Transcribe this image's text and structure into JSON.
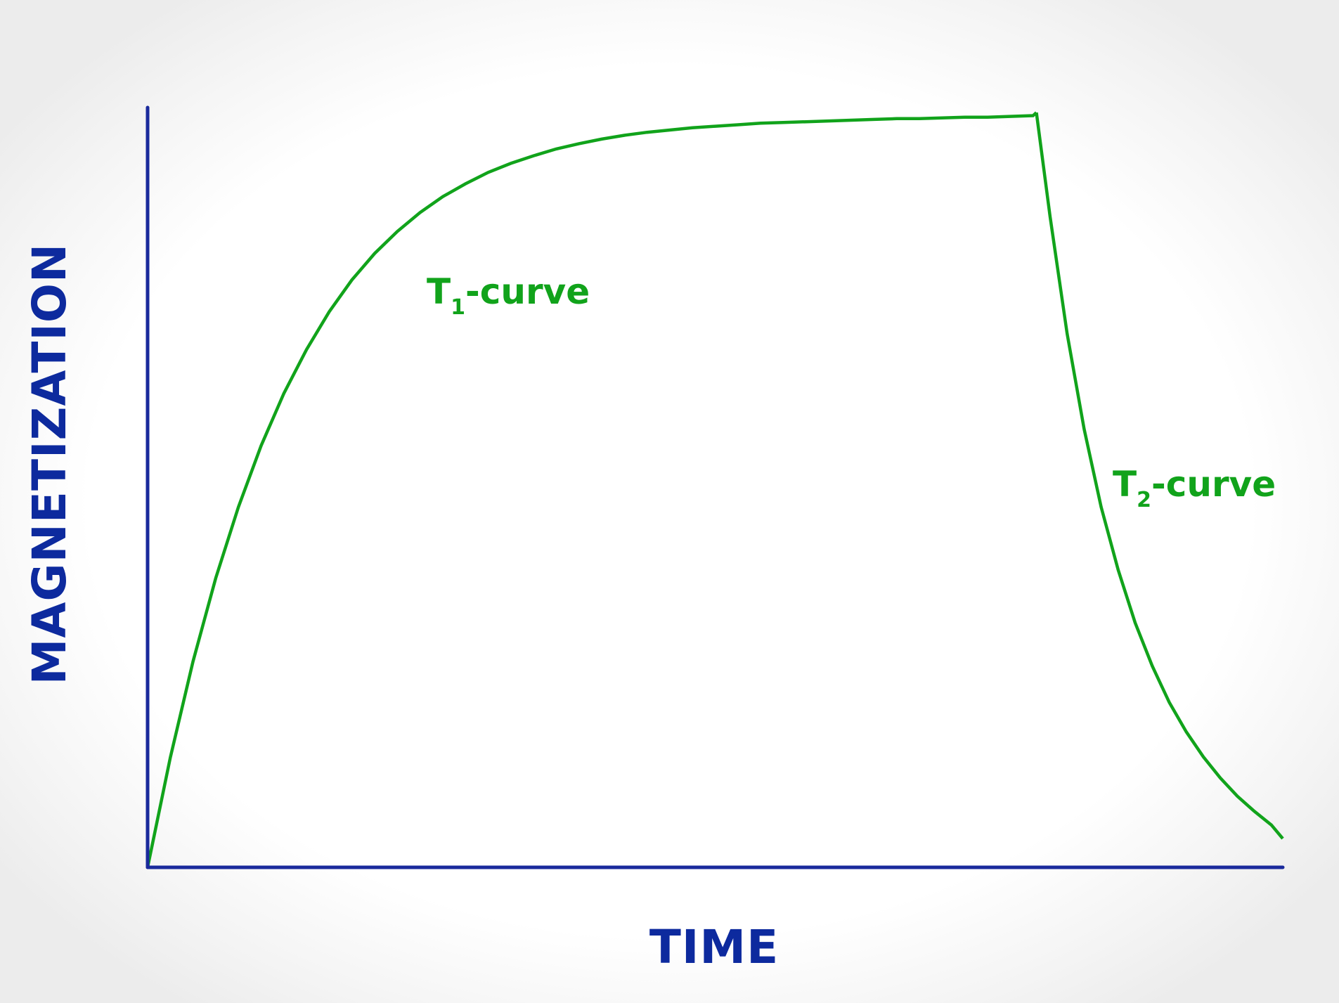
{
  "chart_data": {
    "type": "line",
    "title": "",
    "xlabel": "TIME",
    "ylabel": "MAGNETIZATION",
    "xlim": [
      0,
      100
    ],
    "ylim": [
      0,
      100
    ],
    "grid": false,
    "legend": "none",
    "colors": {
      "axis": "#1a2a9c",
      "axis_text": "#0d2a9e",
      "curve": "#11a31b"
    },
    "series": [
      {
        "x": [
          0,
          2,
          4,
          6,
          8,
          10,
          12,
          14,
          16,
          18,
          20,
          22,
          24,
          26,
          28,
          30,
          32,
          34,
          36,
          38,
          40,
          42,
          44,
          46,
          48,
          50,
          52,
          54,
          56,
          58,
          60,
          62,
          64,
          66,
          68,
          70,
          72,
          74,
          76,
          78,
          78.3
        ],
        "y": [
          0,
          14.5,
          27.2,
          38.2,
          47.6,
          55.7,
          62.6,
          68.4,
          73.4,
          77.6,
          81.1,
          84.0,
          86.5,
          88.6,
          90.3,
          91.8,
          93.0,
          94.0,
          94.9,
          95.6,
          96.2,
          96.7,
          97.1,
          97.4,
          97.7,
          97.9,
          98.1,
          98.3,
          98.4,
          98.5,
          98.6,
          98.7,
          98.8,
          98.9,
          98.9,
          99.0,
          99.1,
          99.1,
          99.2,
          99.3,
          99.7
        ]
      },
      {
        "x": [
          78.3,
          79.5,
          81,
          82.5,
          84,
          85.5,
          87,
          88.5,
          90,
          91.5,
          93,
          94.5,
          96,
          97.5,
          99,
          100
        ],
        "y": [
          99.7,
          86.0,
          70.5,
          57.9,
          47.6,
          39.3,
          32.3,
          26.6,
          21.8,
          17.9,
          14.6,
          11.8,
          9.4,
          7.4,
          5.6,
          3.8
        ]
      }
    ],
    "annotations": [
      {
        "base": "T",
        "sub": "1",
        "rest": "-curve"
      },
      {
        "base": "T",
        "sub": "2",
        "rest": "-curve"
      }
    ]
  }
}
